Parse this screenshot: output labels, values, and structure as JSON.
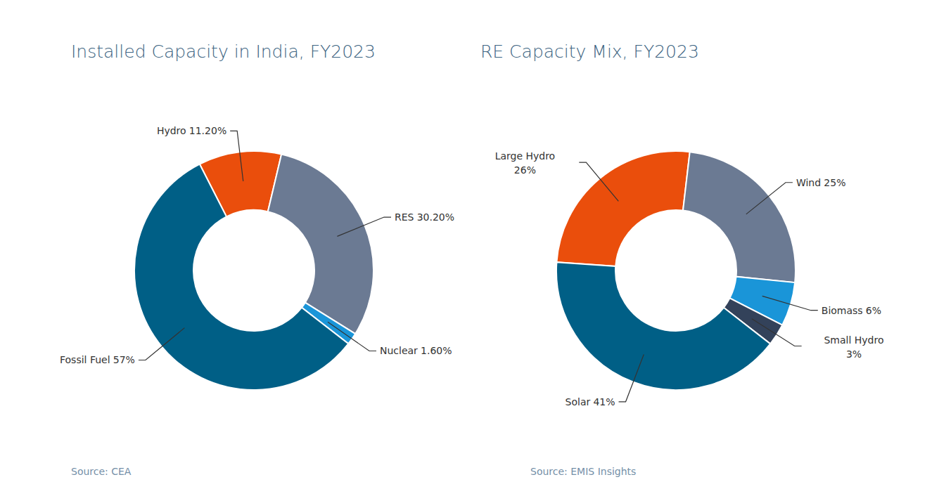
{
  "chart_data": [
    {
      "type": "donut",
      "title": "Installed Capacity in India, FY2023",
      "source": "Source: CEA",
      "categories": [
        "Hydro",
        "RES",
        "Nuclear",
        "Fossil Fuel"
      ],
      "values": [
        11.2,
        30.2,
        1.6,
        57
      ],
      "value_labels": [
        "11.20%",
        "30.20%",
        "1.60%",
        "57%"
      ],
      "colors": [
        "#ea4e0c",
        "#6b7a93",
        "#1a95d8",
        "#005f86"
      ],
      "data_labels": true
    },
    {
      "type": "donut",
      "title": "RE Capacity Mix, FY2023",
      "source": "Source: EMIS Insights",
      "categories": [
        "Large Hydro",
        "Wind",
        "Biomass",
        "Small Hydro",
        "Solar"
      ],
      "values": [
        26,
        25,
        6,
        3,
        41
      ],
      "value_labels": [
        "26%",
        "25%",
        "6%",
        "3%",
        "41%"
      ],
      "colors": [
        "#ea4e0c",
        "#6b7a93",
        "#1a95d8",
        "#33425a",
        "#005f86"
      ],
      "data_labels": true
    }
  ]
}
